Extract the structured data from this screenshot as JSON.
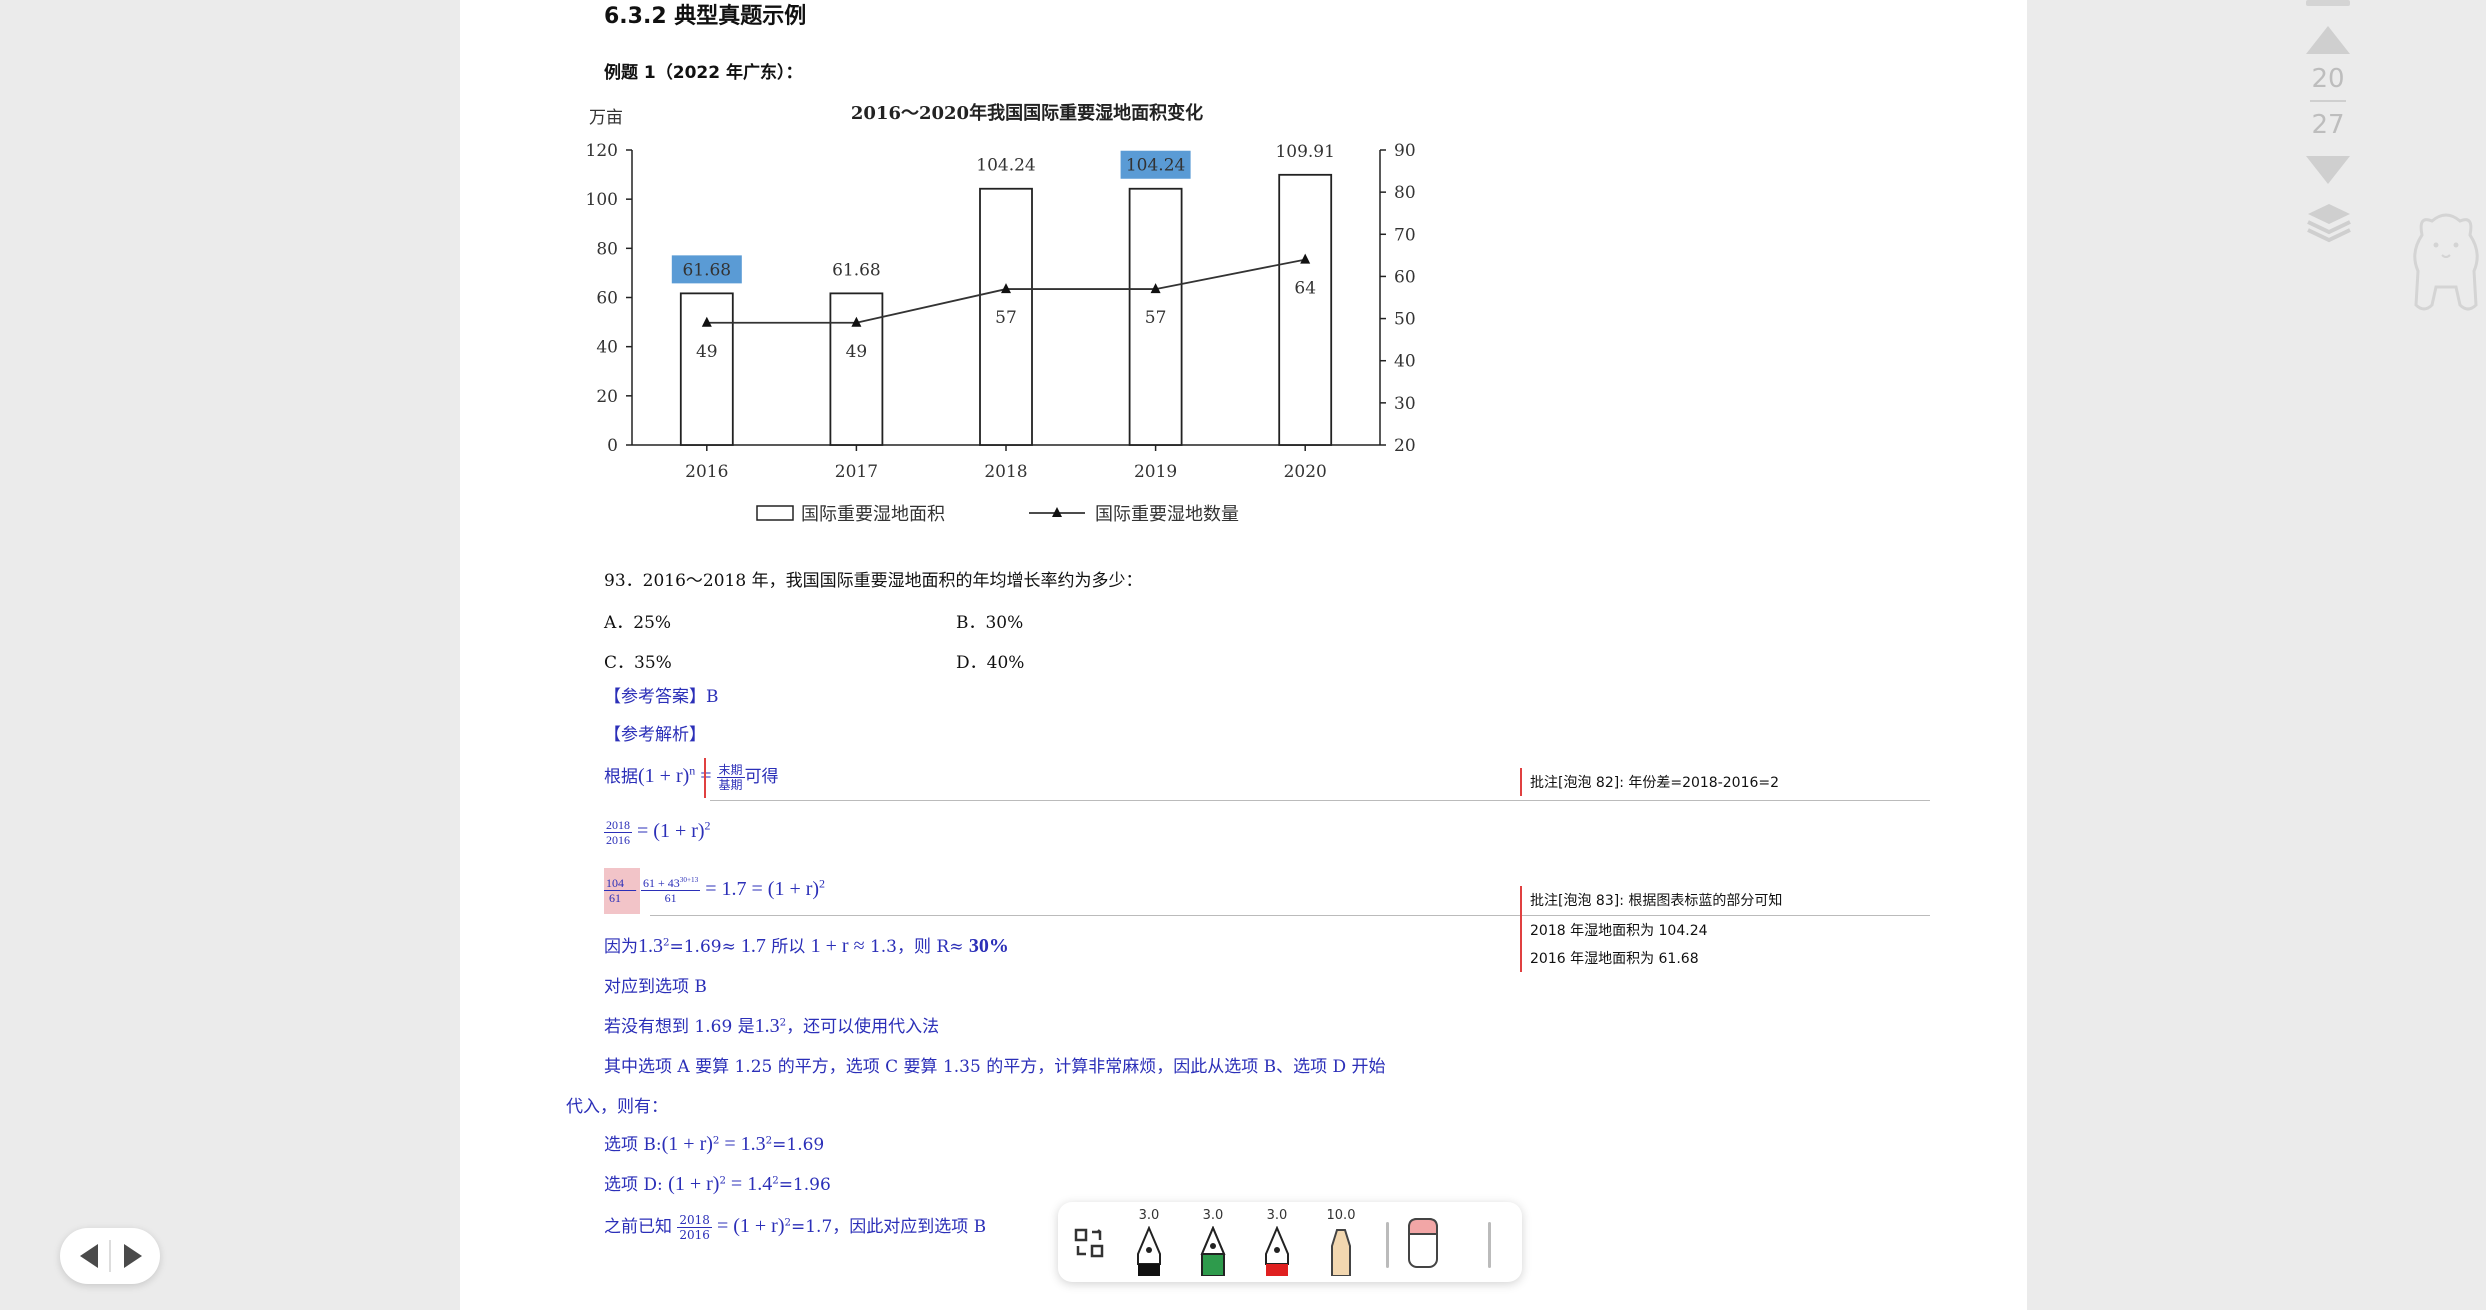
{
  "document": {
    "section_heading": "6.3.2   典型真题示例",
    "example_title": "例题 1（2022 年广东）：",
    "question": "93．2016～2018 年，我国国际重要湿地面积的年均增长率约为多少：",
    "options": [
      {
        "label": "A．25%"
      },
      {
        "label": "B．30%"
      },
      {
        "label": "C．35%"
      },
      {
        "label": "D．40%"
      }
    ],
    "answer": "【参考答案】B",
    "analysis_title": "【参考解析】",
    "solution": {
      "line1_prefix": "根据",
      "line1_formula": "(1 + r)",
      "line1_exp": "n",
      "line1_eq": " = ",
      "line1_frac_num": "末期",
      "line1_frac_den": "基期",
      "line1_suffix": "可得",
      "line2_frac_num": "2018",
      "line2_frac_den": "2016",
      "line2_rest": " = (1 + r)",
      "line2_exp": "2",
      "line3_frac_num": "104",
      "line3_frac_den": "61",
      "line3_dash": "–",
      "line3_frac2_num": "61 + 43",
      "line3_frac2_sup": "30+13",
      "line3_frac2_den": "61",
      "line3_rest": " =  1.7 = (1 + r)",
      "line3_exp": "2",
      "line4_a": "因为",
      "line4_b": "1.3",
      "line4_c": "=1.69≈",
      "line4_d": " 1.7",
      "line4_e": "  所以 ",
      "line4_f": "1 + r ≈",
      "line4_g": " 1.3，则 R≈ ",
      "line4_h": "30%",
      "line5": "对应到选项 B",
      "line6_a": "若没有想到 1.69 是",
      "line6_b": "1.3",
      "line6_c": "，还可以使用代入法",
      "line7": "其中选项 A 要算 1.25 的平方，选项 C 要算 1.35 的平方，计算非常麻烦，因此从选项 B、选项 D 开始",
      "line8": "代入，则有：",
      "line9_a": "选项 B:",
      "line9_b": "(1 + r)",
      "line9_c": " = 1.3",
      "line9_d": "=1.69",
      "line10_a": "选项 D: ",
      "line10_b": "(1 + r)",
      "line10_c": " = 1.4",
      "line10_d": "=1.96",
      "line11_a": "之前已知 ",
      "line11_num": "2018",
      "line11_den": "2016",
      "line11_b": " = (1 + r)",
      "line11_c": "=1.7，因此对应到选项 B",
      "sq": "2"
    }
  },
  "comments": [
    {
      "lines": [
        "批注[泡泡 82]: 年份差=2018-2016=2"
      ]
    },
    {
      "lines": [
        "批注[泡泡 83]: 根据图表标蓝的部分可知",
        "2018 年湿地面积为 104.24",
        "2016 年湿地面积为 61.68"
      ]
    }
  ],
  "navigator": {
    "current_page": "20",
    "total_pages": "27"
  },
  "pen_toolbar": {
    "tools": [
      {
        "label": "3.0",
        "color": "#111111"
      },
      {
        "label": "3.0",
        "color": "#2e9b4c"
      },
      {
        "label": "3.0",
        "color": "#e02020"
      },
      {
        "label": "10.0",
        "color": "#f2d7b0"
      }
    ]
  },
  "colors": {
    "highlight": "#5a9bd5",
    "text_blue": "#2b2fb8",
    "annotation_red": "#e04040"
  },
  "chart_data": {
    "type": "bar",
    "title": "2016～2020年我国国际重要湿地面积变化",
    "y_unit": "万亩",
    "categories": [
      "2016",
      "2017",
      "2018",
      "2019",
      "2020"
    ],
    "series": [
      {
        "name": "国际重要湿地面积",
        "type": "bar",
        "axis": "left",
        "values": [
          61.68,
          61.68,
          104.24,
          104.24,
          109.91
        ],
        "value_labels": [
          "61.68",
          "61.68",
          "104.24",
          "104.24",
          "109.91"
        ]
      },
      {
        "name": "国际重要湿地数量",
        "type": "line",
        "axis": "right",
        "values": [
          49,
          49,
          57,
          57,
          64
        ],
        "value_labels": [
          "49",
          "49",
          "57",
          "57",
          "64"
        ]
      }
    ],
    "highlighted": [
      0,
      3
    ],
    "ylim_left": [
      0,
      120
    ],
    "ylim_right": [
      20,
      90
    ],
    "left_ticks": [
      "0",
      "20",
      "40",
      "60",
      "80",
      "100",
      "120"
    ],
    "right_ticks": [
      "20",
      "30",
      "40",
      "50",
      "60",
      "70",
      "80",
      "90"
    ],
    "legend_position": "bottom",
    "grid": false
  }
}
